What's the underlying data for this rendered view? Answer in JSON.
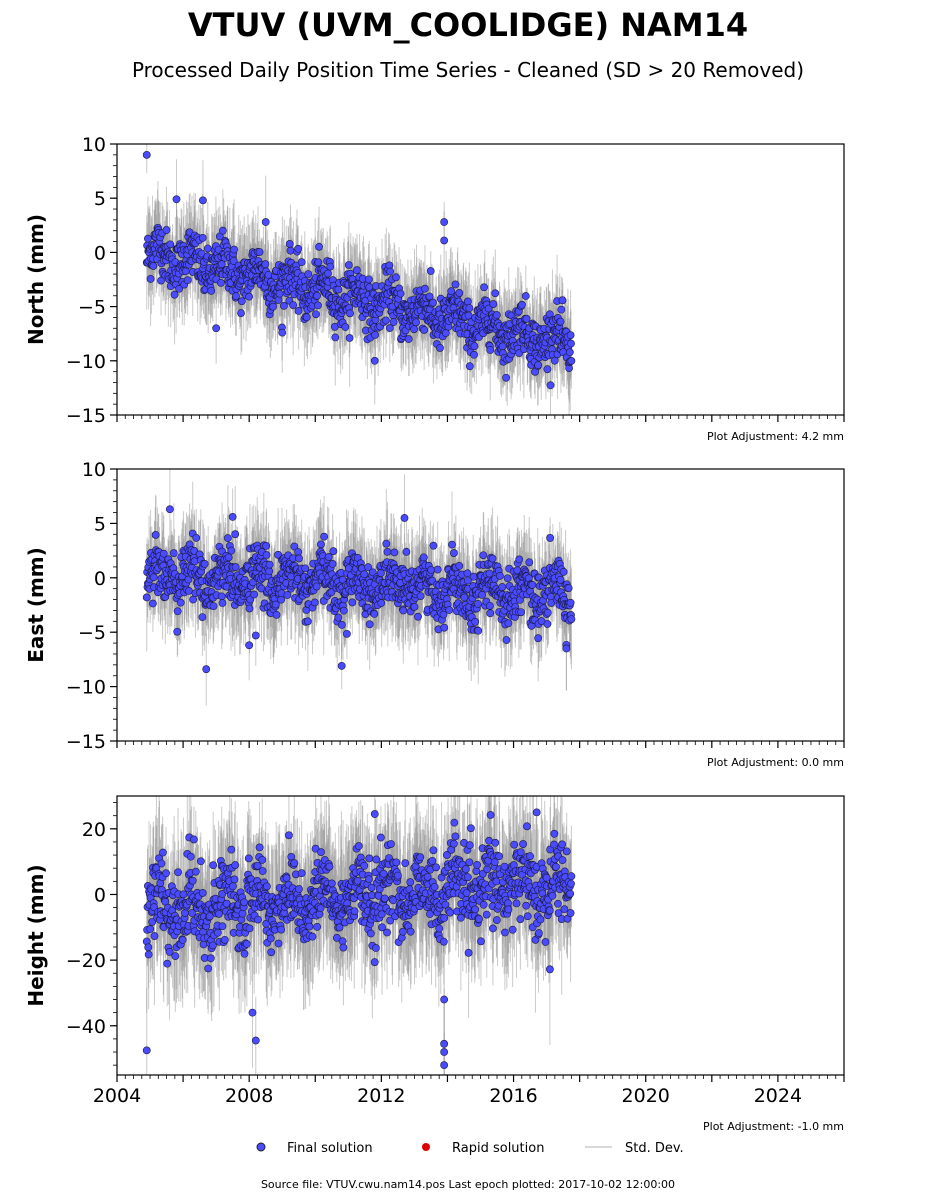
{
  "title": "VTUV (UVM_COOLIDGE) NAM14",
  "subtitle": "Processed Daily Position Time Series - Cleaned (SD > 20 Removed)",
  "source_note": "Source file: VTUV.cwu.nam14.pos  Last epoch plotted: 2017-10-02 12:00:00",
  "legend": [
    {
      "label": "Final solution",
      "color": "#4a4aff",
      "marker": "circle"
    },
    {
      "label": "Rapid solution",
      "color": "#dd0000",
      "marker": "circle"
    },
    {
      "label": "Std. Dev.",
      "color": "#cccccc",
      "marker": "line"
    }
  ],
  "chart_data": [
    {
      "type": "scatter",
      "name": "north",
      "ylabel": "North (mm)",
      "ylim": [
        -15,
        10
      ],
      "yticks": [
        "10",
        "5",
        "0",
        "−5",
        "−10",
        "−15"
      ],
      "xlim": [
        2004,
        2026
      ],
      "adjustment": "Plot Adjustment: 4.2 mm",
      "trend": {
        "start_year": 2004.9,
        "end_year": 2017.75,
        "start_value": 0.0,
        "end_value": -8.5
      },
      "scatter_sd": 1.2,
      "outliers": [
        [
          2004.9,
          9.0
        ],
        [
          2005.8,
          4.9
        ],
        [
          2006.6,
          4.8
        ],
        [
          2008.5,
          2.8
        ],
        [
          2013.9,
          2.8
        ],
        [
          2013.9,
          1.1
        ],
        [
          2007.0,
          -7.0
        ],
        [
          2009.0,
          -7.4
        ],
        [
          2011.8,
          -10.0
        ]
      ]
    },
    {
      "type": "scatter",
      "name": "east",
      "ylabel": "East (mm)",
      "ylim": [
        -15,
        10
      ],
      "yticks": [
        "10",
        "5",
        "0",
        "−5",
        "−10",
        "−15"
      ],
      "xlim": [
        2004,
        2026
      ],
      "adjustment": "Plot Adjustment: 0.0 mm",
      "trend": {
        "start_year": 2004.9,
        "end_year": 2017.75,
        "start_value": 0.3,
        "end_value": -1.5
      },
      "scatter_sd": 1.3,
      "outliers": [
        [
          2005.6,
          6.3
        ],
        [
          2007.5,
          5.6
        ],
        [
          2012.7,
          5.5
        ],
        [
          2006.7,
          -8.4
        ],
        [
          2010.8,
          -8.1
        ],
        [
          2008.0,
          -6.2
        ],
        [
          2008.2,
          -5.3
        ],
        [
          2017.6,
          -6.5
        ]
      ]
    },
    {
      "type": "scatter",
      "name": "height",
      "ylabel": "Height (mm)",
      "ylim": [
        -55,
        30
      ],
      "yticks": [
        "20",
        "0",
        "−20",
        "−40"
      ],
      "xlim": [
        2004,
        2026
      ],
      "xticks": [
        "2004",
        "2008",
        "2012",
        "2016",
        "2020",
        "2024"
      ],
      "adjustment": "Plot Adjustment: -1.0 mm",
      "trend": {
        "start_year": 2004.9,
        "end_year": 2017.75,
        "start_value": -5.0,
        "end_value": 4.0
      },
      "scatter_sd": 6.0,
      "outliers": [
        [
          2004.9,
          -47.5
        ],
        [
          2008.2,
          -44.5
        ],
        [
          2008.1,
          -36.0
        ],
        [
          2013.9,
          -52.0
        ],
        [
          2013.9,
          -48.0
        ],
        [
          2013.9,
          -45.5
        ],
        [
          2013.9,
          -32.0
        ],
        [
          2011.8,
          24.5
        ],
        [
          2016.7,
          25.0
        ],
        [
          2017.1,
          -22.8
        ]
      ]
    }
  ]
}
